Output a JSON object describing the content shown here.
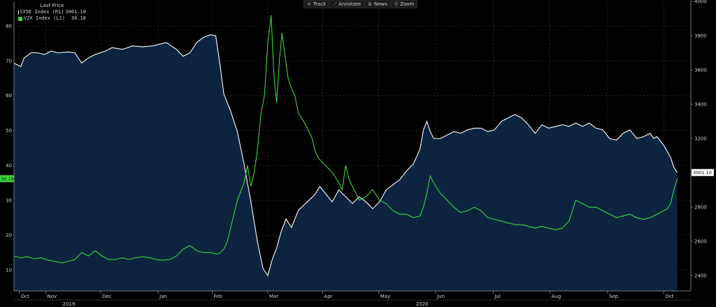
{
  "toolbar": [
    {
      "icon": "crosshair-icon",
      "glyph": "✛",
      "label": "Track"
    },
    {
      "icon": "pencil-icon",
      "glyph": "⟋",
      "label": "Annotate"
    },
    {
      "icon": "news-icon",
      "glyph": "≣",
      "label": "News"
    },
    {
      "icon": "magnifier-icon",
      "glyph": "⚲",
      "label": "Zoom"
    }
  ],
  "legend": {
    "title": "Last Price",
    "items": [
      {
        "name": "SX5E Index  (R1)",
        "value": "3001.10",
        "color": "#ffffff"
      },
      {
        "name": "V2X Index  (L1)",
        "value": "36.18",
        "color": "#3dd43d"
      }
    ]
  },
  "colors": {
    "sx5e_line": "#ffffff",
    "sx5e_fill": "#0c2440",
    "v2x_line": "#3dd43d",
    "v2x_tag_bg": "#3dd43d",
    "sx5e_tag_bg": "#ffffff",
    "grid": "#3a3a3a"
  },
  "chart_data": {
    "type": "line",
    "left_axis": {
      "series": "V2X Index",
      "ticks": [
        10,
        20,
        30,
        40,
        50,
        60,
        70,
        80
      ],
      "range": [
        4,
        87
      ]
    },
    "right_axis": {
      "series": "SX5E Index",
      "ticks": [
        2400,
        2600,
        2800,
        3000,
        3200,
        3400,
        3600,
        3800,
        4000
      ],
      "range": [
        2310,
        4000
      ]
    },
    "month_labels": [
      {
        "label": "Oct",
        "t": 0.008
      },
      {
        "label": "Nov",
        "t": 0.047
      },
      {
        "label": "Dec",
        "t": 0.128
      },
      {
        "label": "Jan",
        "t": 0.213
      },
      {
        "label": "Feb",
        "t": 0.293
      },
      {
        "label": "Mar",
        "t": 0.375
      },
      {
        "label": "Apr",
        "t": 0.456
      },
      {
        "label": "May",
        "t": 0.539
      },
      {
        "label": "Jun",
        "t": 0.623
      },
      {
        "label": "Jul",
        "t": 0.708
      },
      {
        "label": "Aug",
        "t": 0.792
      },
      {
        "label": "Sep",
        "t": 0.877
      },
      {
        "label": "Oct",
        "t": 0.96
      }
    ],
    "year_labels": [
      {
        "label": "2019",
        "t": 0.081
      },
      {
        "label": "2020",
        "t": 0.603
      }
    ],
    "last_values": {
      "sx5e": "3001.10",
      "v2x": "36.18"
    },
    "series": [
      {
        "name": "SX5E Index",
        "axis": "right",
        "points": [
          [
            0,
            3640
          ],
          [
            0.01,
            3620
          ],
          [
            0.015,
            3670
          ],
          [
            0.025,
            3700
          ],
          [
            0.035,
            3700
          ],
          [
            0.045,
            3690
          ],
          [
            0.055,
            3710
          ],
          [
            0.065,
            3700
          ],
          [
            0.08,
            3705
          ],
          [
            0.09,
            3700
          ],
          [
            0.1,
            3640
          ],
          [
            0.11,
            3670
          ],
          [
            0.12,
            3690
          ],
          [
            0.135,
            3710
          ],
          [
            0.145,
            3730
          ],
          [
            0.16,
            3720
          ],
          [
            0.175,
            3740
          ],
          [
            0.19,
            3735
          ],
          [
            0.205,
            3740
          ],
          [
            0.215,
            3750
          ],
          [
            0.225,
            3760
          ],
          [
            0.24,
            3720
          ],
          [
            0.25,
            3680
          ],
          [
            0.26,
            3700
          ],
          [
            0.27,
            3760
          ],
          [
            0.28,
            3790
          ],
          [
            0.29,
            3805
          ],
          [
            0.298,
            3800
          ],
          [
            0.304,
            3640
          ],
          [
            0.31,
            3460
          ],
          [
            0.32,
            3360
          ],
          [
            0.33,
            3240
          ],
          [
            0.34,
            3050
          ],
          [
            0.35,
            2830
          ],
          [
            0.36,
            2590
          ],
          [
            0.368,
            2440
          ],
          [
            0.375,
            2400
          ],
          [
            0.382,
            2500
          ],
          [
            0.388,
            2560
          ],
          [
            0.395,
            2660
          ],
          [
            0.402,
            2730
          ],
          [
            0.41,
            2680
          ],
          [
            0.416,
            2740
          ],
          [
            0.42,
            2780
          ],
          [
            0.428,
            2810
          ],
          [
            0.436,
            2840
          ],
          [
            0.444,
            2870
          ],
          [
            0.452,
            2920
          ],
          [
            0.46,
            2880
          ],
          [
            0.47,
            2830
          ],
          [
            0.48,
            2900
          ],
          [
            0.49,
            2860
          ],
          [
            0.5,
            2820
          ],
          [
            0.51,
            2860
          ],
          [
            0.52,
            2830
          ],
          [
            0.53,
            2790
          ],
          [
            0.54,
            2830
          ],
          [
            0.55,
            2900
          ],
          [
            0.56,
            2930
          ],
          [
            0.57,
            2960
          ],
          [
            0.58,
            3010
          ],
          [
            0.59,
            3050
          ],
          [
            0.6,
            3140
          ],
          [
            0.605,
            3250
          ],
          [
            0.61,
            3300
          ],
          [
            0.615,
            3240
          ],
          [
            0.62,
            3200
          ],
          [
            0.63,
            3200
          ],
          [
            0.64,
            3220
          ],
          [
            0.65,
            3240
          ],
          [
            0.66,
            3230
          ],
          [
            0.67,
            3250
          ],
          [
            0.68,
            3260
          ],
          [
            0.69,
            3260
          ],
          [
            0.7,
            3240
          ],
          [
            0.71,
            3250
          ],
          [
            0.72,
            3300
          ],
          [
            0.73,
            3320
          ],
          [
            0.74,
            3340
          ],
          [
            0.75,
            3320
          ],
          [
            0.76,
            3280
          ],
          [
            0.77,
            3230
          ],
          [
            0.78,
            3280
          ],
          [
            0.79,
            3260
          ],
          [
            0.8,
            3270
          ],
          [
            0.81,
            3280
          ],
          [
            0.82,
            3270
          ],
          [
            0.83,
            3290
          ],
          [
            0.84,
            3270
          ],
          [
            0.85,
            3290
          ],
          [
            0.86,
            3260
          ],
          [
            0.87,
            3250
          ],
          [
            0.88,
            3200
          ],
          [
            0.89,
            3190
          ],
          [
            0.9,
            3230
          ],
          [
            0.91,
            3250
          ],
          [
            0.92,
            3200
          ],
          [
            0.93,
            3210
          ],
          [
            0.94,
            3230
          ],
          [
            0.945,
            3200
          ],
          [
            0.95,
            3210
          ],
          [
            0.96,
            3160
          ],
          [
            0.97,
            3090
          ],
          [
            0.975,
            3030
          ],
          [
            0.98,
            3001.1
          ]
        ]
      },
      {
        "name": "V2X Index",
        "axis": "left",
        "points": [
          [
            0,
            14
          ],
          [
            0.01,
            13.5
          ],
          [
            0.02,
            13.8
          ],
          [
            0.03,
            13.2
          ],
          [
            0.04,
            13.5
          ],
          [
            0.05,
            12.8
          ],
          [
            0.06,
            12.5
          ],
          [
            0.07,
            12
          ],
          [
            0.08,
            12.5
          ],
          [
            0.09,
            13
          ],
          [
            0.1,
            15
          ],
          [
            0.11,
            14
          ],
          [
            0.12,
            15.5
          ],
          [
            0.13,
            14
          ],
          [
            0.14,
            13
          ],
          [
            0.15,
            13
          ],
          [
            0.16,
            13.5
          ],
          [
            0.17,
            13
          ],
          [
            0.18,
            13.5
          ],
          [
            0.19,
            13.8
          ],
          [
            0.2,
            13.5
          ],
          [
            0.21,
            13
          ],
          [
            0.22,
            12.8
          ],
          [
            0.23,
            13
          ],
          [
            0.24,
            14
          ],
          [
            0.25,
            16
          ],
          [
            0.26,
            17
          ],
          [
            0.27,
            15.5
          ],
          [
            0.28,
            15
          ],
          [
            0.29,
            15
          ],
          [
            0.3,
            14.5
          ],
          [
            0.305,
            15
          ],
          [
            0.31,
            16
          ],
          [
            0.315,
            18
          ],
          [
            0.32,
            22
          ],
          [
            0.325,
            26
          ],
          [
            0.33,
            30
          ],
          [
            0.34,
            35
          ],
          [
            0.345,
            40
          ],
          [
            0.35,
            34
          ],
          [
            0.355,
            38
          ],
          [
            0.36,
            45
          ],
          [
            0.365,
            55
          ],
          [
            0.37,
            60
          ],
          [
            0.375,
            75
          ],
          [
            0.38,
            83
          ],
          [
            0.384,
            66
          ],
          [
            0.388,
            58
          ],
          [
            0.392,
            70
          ],
          [
            0.396,
            78
          ],
          [
            0.4,
            72
          ],
          [
            0.405,
            65
          ],
          [
            0.41,
            62
          ],
          [
            0.415,
            60
          ],
          [
            0.42,
            55
          ],
          [
            0.43,
            52
          ],
          [
            0.44,
            48
          ],
          [
            0.445,
            44
          ],
          [
            0.45,
            42
          ],
          [
            0.46,
            40
          ],
          [
            0.47,
            38
          ],
          [
            0.48,
            35
          ],
          [
            0.485,
            33
          ],
          [
            0.49,
            40
          ],
          [
            0.495,
            36
          ],
          [
            0.5,
            34
          ],
          [
            0.51,
            30
          ],
          [
            0.52,
            31
          ],
          [
            0.53,
            33
          ],
          [
            0.54,
            30
          ],
          [
            0.55,
            29
          ],
          [
            0.56,
            27
          ],
          [
            0.57,
            26
          ],
          [
            0.58,
            26
          ],
          [
            0.59,
            25
          ],
          [
            0.6,
            25.5
          ],
          [
            0.605,
            28
          ],
          [
            0.61,
            32
          ],
          [
            0.615,
            37
          ],
          [
            0.62,
            35
          ],
          [
            0.63,
            32
          ],
          [
            0.64,
            30
          ],
          [
            0.65,
            28
          ],
          [
            0.66,
            26.5
          ],
          [
            0.67,
            27
          ],
          [
            0.68,
            28
          ],
          [
            0.69,
            27
          ],
          [
            0.7,
            25
          ],
          [
            0.71,
            24.5
          ],
          [
            0.72,
            24
          ],
          [
            0.73,
            23.5
          ],
          [
            0.74,
            23
          ],
          [
            0.75,
            23
          ],
          [
            0.76,
            22.5
          ],
          [
            0.77,
            22
          ],
          [
            0.78,
            22.5
          ],
          [
            0.79,
            22
          ],
          [
            0.8,
            21.5
          ],
          [
            0.81,
            22
          ],
          [
            0.82,
            24
          ],
          [
            0.825,
            27
          ],
          [
            0.83,
            30
          ],
          [
            0.84,
            29
          ],
          [
            0.85,
            28
          ],
          [
            0.86,
            28
          ],
          [
            0.87,
            27
          ],
          [
            0.88,
            26
          ],
          [
            0.89,
            25
          ],
          [
            0.9,
            25.5
          ],
          [
            0.91,
            26
          ],
          [
            0.92,
            25
          ],
          [
            0.93,
            24.5
          ],
          [
            0.94,
            25
          ],
          [
            0.95,
            26
          ],
          [
            0.96,
            27
          ],
          [
            0.965,
            27.5
          ],
          [
            0.97,
            29
          ],
          [
            0.975,
            33
          ],
          [
            0.98,
            36.18
          ]
        ]
      }
    ]
  }
}
